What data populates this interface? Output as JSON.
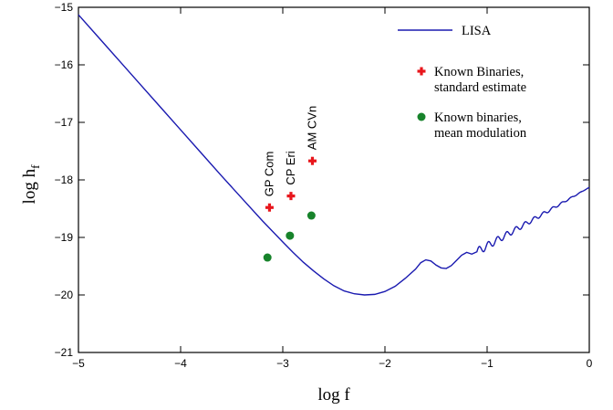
{
  "chart_data": {
    "type": "line",
    "title": "",
    "xlabel": "log f",
    "ylabel_main": "log h",
    "ylabel_sub": "f",
    "xlim": [
      -5,
      0
    ],
    "ylim": [
      -21,
      -15
    ],
    "xticks": [
      -5,
      -4,
      -3,
      -2,
      -1,
      0
    ],
    "yticks": [
      -21,
      -20,
      -19,
      -18,
      -17,
      -16,
      -15
    ],
    "xtick_labels": [
      "−5",
      "−4",
      "−3",
      "−2",
      "−1",
      "0"
    ],
    "ytick_labels": [
      "−21",
      "−20",
      "−19",
      "−18",
      "−17",
      "−16",
      "−15"
    ],
    "grid": false,
    "legend_position": "top-right",
    "colors": {
      "lisa": "#1a1ab0",
      "standard": "#e8161c",
      "mean": "#17832b"
    },
    "series": [
      {
        "name": "LISA",
        "kind": "line",
        "color_key": "lisa",
        "points": [
          [
            -5.0,
            -15.13
          ],
          [
            -4.8,
            -15.53
          ],
          [
            -4.6,
            -15.93
          ],
          [
            -4.4,
            -16.33
          ],
          [
            -4.2,
            -16.73
          ],
          [
            -4.0,
            -17.13
          ],
          [
            -3.8,
            -17.53
          ],
          [
            -3.6,
            -17.93
          ],
          [
            -3.4,
            -18.32
          ],
          [
            -3.2,
            -18.71
          ],
          [
            -3.0,
            -19.08
          ],
          [
            -2.9,
            -19.26
          ],
          [
            -2.8,
            -19.43
          ],
          [
            -2.7,
            -19.58
          ],
          [
            -2.6,
            -19.72
          ],
          [
            -2.5,
            -19.84
          ],
          [
            -2.4,
            -19.93
          ],
          [
            -2.3,
            -19.98
          ],
          [
            -2.2,
            -20.0
          ],
          [
            -2.1,
            -19.99
          ],
          [
            -2.0,
            -19.94
          ],
          [
            -1.9,
            -19.85
          ],
          [
            -1.8,
            -19.71
          ],
          [
            -1.7,
            -19.55
          ],
          [
            -1.65,
            -19.44
          ],
          [
            -1.6,
            -19.39
          ],
          [
            -1.55,
            -19.41
          ],
          [
            -1.5,
            -19.48
          ],
          [
            -1.45,
            -19.53
          ],
          [
            -1.4,
            -19.54
          ],
          [
            -1.35,
            -19.49
          ],
          [
            -1.3,
            -19.4
          ],
          [
            -1.25,
            -19.31
          ],
          [
            -1.2,
            -19.26
          ],
          [
            -1.15,
            -19.29
          ],
          [
            -1.1,
            -19.25
          ]
        ]
      },
      {
        "name": "Known Binaries, standard estimate",
        "name_line1": "Known Binaries,",
        "name_line2": "standard estimate",
        "kind": "scatter",
        "marker": "cross",
        "color_key": "standard",
        "points": [
          [
            -3.13,
            -18.48
          ],
          [
            -2.92,
            -18.28
          ],
          [
            -2.71,
            -17.67
          ]
        ]
      },
      {
        "name": "Known binaries, mean modulation",
        "name_line1": "Known binaries,",
        "name_line2": "mean modulation",
        "kind": "scatter",
        "marker": "circle",
        "color_key": "mean",
        "points": [
          [
            -3.15,
            -19.35
          ],
          [
            -2.93,
            -18.97
          ],
          [
            -2.72,
            -18.62
          ]
        ]
      }
    ],
    "annotations": [
      {
        "text": "GP Com",
        "x": -3.13
      },
      {
        "text": "CP Eri",
        "x": -2.92
      },
      {
        "text": "AM CVn",
        "x": -2.71
      }
    ]
  }
}
